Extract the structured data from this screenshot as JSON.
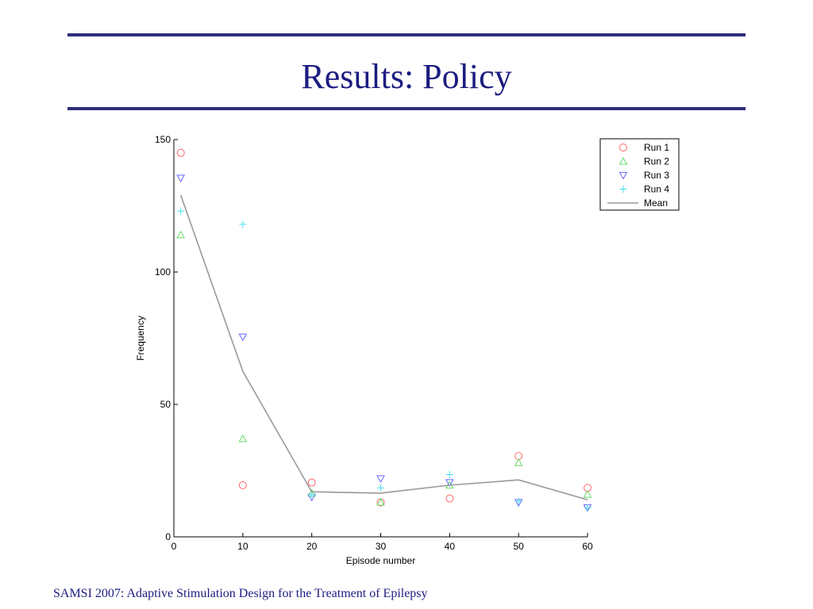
{
  "slide": {
    "title": "Results: Policy",
    "footer": "SAMSI 2007: Adaptive Stimulation Design for the Treatment of Epilepsy"
  },
  "chart_data": {
    "type": "scatter",
    "title": "",
    "xlabel": "Episode number",
    "ylabel": "Frequency",
    "xlim": [
      0,
      60
    ],
    "ylim": [
      0,
      150
    ],
    "xticks": [
      0,
      10,
      20,
      30,
      40,
      50,
      60
    ],
    "yticks": [
      0,
      50,
      100,
      150
    ],
    "grid": false,
    "legend_position": "top-right",
    "series": [
      {
        "name": "Run 1",
        "marker": "circle",
        "color": "#ff6666",
        "x": [
          1,
          10,
          20,
          30,
          40,
          50,
          60
        ],
        "y": [
          145,
          19.5,
          20.5,
          13,
          14.5,
          30.5,
          18.5
        ]
      },
      {
        "name": "Run 2",
        "marker": "triangle-up",
        "color": "#66dd66",
        "x": [
          1,
          10,
          20,
          30,
          40,
          50,
          60
        ],
        "y": [
          114,
          37,
          16.5,
          13,
          19.5,
          28,
          16
        ]
      },
      {
        "name": "Run 3",
        "marker": "triangle-down",
        "color": "#6666ff",
        "x": [
          1,
          10,
          20,
          30,
          40,
          50,
          60
        ],
        "y": [
          135.5,
          75.5,
          15,
          22,
          20.5,
          13,
          11
        ]
      },
      {
        "name": "Run 4",
        "marker": "plus",
        "color": "#44e0ee",
        "x": [
          1,
          10,
          20,
          30,
          40,
          50,
          60
        ],
        "y": [
          123,
          118,
          16,
          18.5,
          23.5,
          13.5,
          11
        ]
      },
      {
        "name": "Mean",
        "marker": "line",
        "color": "#999999",
        "x": [
          1,
          10,
          20,
          30,
          40,
          50,
          60
        ],
        "y": [
          129,
          62.5,
          17,
          16.5,
          19.5,
          21.5,
          14
        ]
      }
    ]
  }
}
